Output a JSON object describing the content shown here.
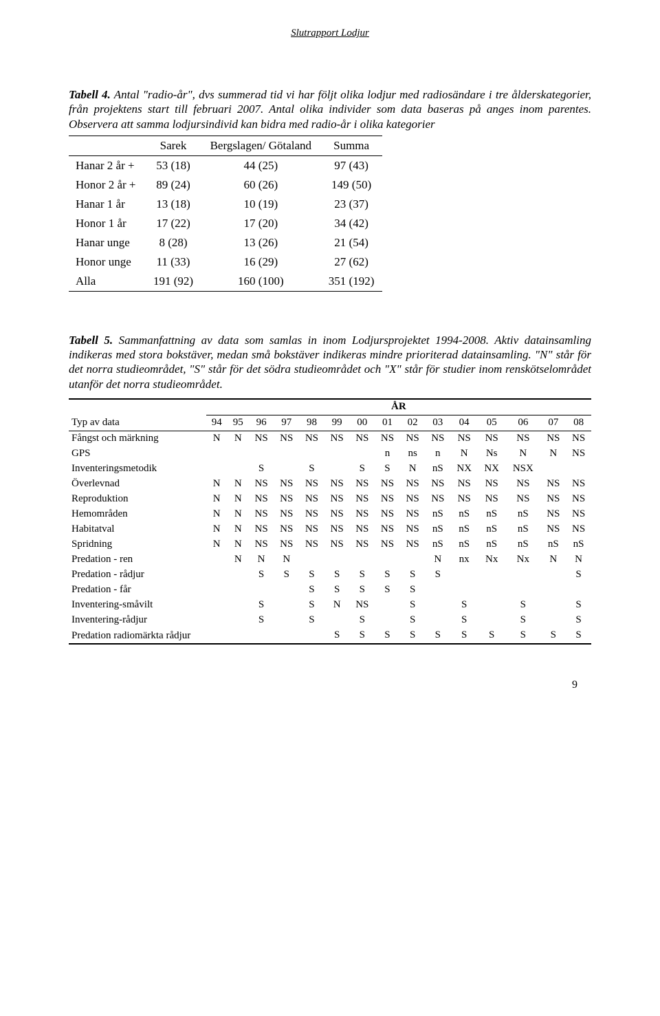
{
  "doc_header": "Slutrapport Lodjur",
  "t4": {
    "caption_bold": "Tabell 4.",
    "caption_rest": " Antal \"radio-år\", dvs summerad tid vi har följt olika lodjur med radiosändare i tre ålderskategorier, från projektens start till februari 2007. Antal olika individer som data baseras på anges inom parentes. Observera att samma lodjursindivid kan bidra med radio-år i olika kategorier",
    "headers": [
      "",
      "Sarek",
      "Bergslagen/ Götaland",
      "Summa"
    ],
    "rows": [
      [
        "Hanar 2 år +",
        "53 (18)",
        "44  (25)",
        "97 (43)"
      ],
      [
        "Honor 2 år +",
        "89 (24)",
        "60  (26)",
        "149 (50)"
      ],
      [
        "Hanar 1 år",
        "13 (18)",
        "10  (19)",
        "23 (37)"
      ],
      [
        "Honor 1 år",
        "17 (22)",
        "17  (20)",
        "34 (42)"
      ],
      [
        "Hanar unge",
        "8 (28)",
        "13  (26)",
        "21 (54)"
      ],
      [
        "Honor unge",
        "11 (33)",
        "16  (29)",
        "27 (62)"
      ],
      [
        "Alla",
        "191 (92)",
        "160 (100)",
        "351 (192)"
      ]
    ]
  },
  "t5": {
    "caption_bold": "Tabell 5.",
    "caption_rest": " Sammanfattning av data som samlas in inom Lodjursprojektet 1994-2008. Aktiv datainsamling indikeras med stora bokstäver, medan små bokstäver indikeras mindre prioriterad datainsamling. \"N\" står för det norra studieområdet, \"S\" står för det södra studieområdet och \"X\" står för studier inom renskötselområdet utanför det norra studieområdet.",
    "ar_label": "ÅR",
    "typ_label": "Typ av data",
    "years": [
      "94",
      "95",
      "96",
      "97",
      "98",
      "99",
      "00",
      "01",
      "02",
      "03",
      "04",
      "05",
      "06",
      "07",
      "08"
    ],
    "rows": [
      {
        "label": "Fångst och märkning",
        "cells": [
          "N",
          "N",
          "NS",
          "NS",
          "NS",
          "NS",
          "NS",
          "NS",
          "NS",
          "NS",
          "NS",
          "NS",
          "NS",
          "NS",
          "NS"
        ]
      },
      {
        "label": "GPS",
        "cells": [
          "",
          "",
          "",
          "",
          "",
          "",
          "",
          "n",
          "ns",
          "n",
          "N",
          "Ns",
          "N",
          "N",
          "NS"
        ]
      },
      {
        "label": "Inventeringsmetodik",
        "cells": [
          "",
          "",
          "S",
          "",
          "S",
          "",
          "S",
          "S",
          "N",
          "nS",
          "NX",
          "NX",
          "NSX",
          "",
          ""
        ]
      },
      {
        "label": "Överlevnad",
        "cells": [
          "N",
          "N",
          "NS",
          "NS",
          "NS",
          "NS",
          "NS",
          "NS",
          "NS",
          "NS",
          "NS",
          "NS",
          "NS",
          "NS",
          "NS"
        ]
      },
      {
        "label": "Reproduktion",
        "cells": [
          "N",
          "N",
          "NS",
          "NS",
          "NS",
          "NS",
          "NS",
          "NS",
          "NS",
          "NS",
          "NS",
          "NS",
          "NS",
          "NS",
          "NS"
        ]
      },
      {
        "label": "Hemområden",
        "cells": [
          "N",
          "N",
          "NS",
          "NS",
          "NS",
          "NS",
          "NS",
          "NS",
          "NS",
          "nS",
          "nS",
          "nS",
          "nS",
          "NS",
          "NS"
        ]
      },
      {
        "label": "Habitatval",
        "cells": [
          "N",
          "N",
          "NS",
          "NS",
          "NS",
          "NS",
          "NS",
          "NS",
          "NS",
          "nS",
          "nS",
          "nS",
          "nS",
          "NS",
          "NS"
        ]
      },
      {
        "label": "Spridning",
        "cells": [
          "N",
          "N",
          "NS",
          "NS",
          "NS",
          "NS",
          "NS",
          "NS",
          "NS",
          "nS",
          "nS",
          "nS",
          "nS",
          "nS",
          "nS"
        ]
      },
      {
        "label": "Predation - ren",
        "cells": [
          "",
          "N",
          "N",
          "N",
          "",
          "",
          "",
          "",
          "",
          "N",
          "nx",
          "Nx",
          "Nx",
          "N",
          "N"
        ]
      },
      {
        "label": "Predation - rådjur",
        "cells": [
          "",
          "",
          "S",
          "S",
          "S",
          "S",
          "S",
          "S",
          "S",
          "S",
          "",
          "",
          "",
          "",
          "S"
        ]
      },
      {
        "label": "Predation - får",
        "cells": [
          "",
          "",
          "",
          "",
          "S",
          "S",
          "S",
          "S",
          "S",
          "",
          "",
          "",
          "",
          "",
          ""
        ]
      },
      {
        "label": "Inventering-småvilt",
        "cells": [
          "",
          "",
          "S",
          "",
          "S",
          "N",
          "NS",
          "",
          "S",
          "",
          "S",
          "",
          "S",
          "",
          "S"
        ]
      },
      {
        "label": "Inventering-rådjur",
        "cells": [
          "",
          "",
          "S",
          "",
          "S",
          "",
          "S",
          "",
          "S",
          "",
          "S",
          "",
          "S",
          "",
          "S"
        ]
      },
      {
        "label": "Predation radiomärkta rådjur",
        "cells": [
          "",
          "",
          "",
          "",
          "",
          "S",
          "S",
          "S",
          "S",
          "S",
          "S",
          "S",
          "S",
          "S",
          "S"
        ]
      }
    ]
  },
  "page_number": "9"
}
